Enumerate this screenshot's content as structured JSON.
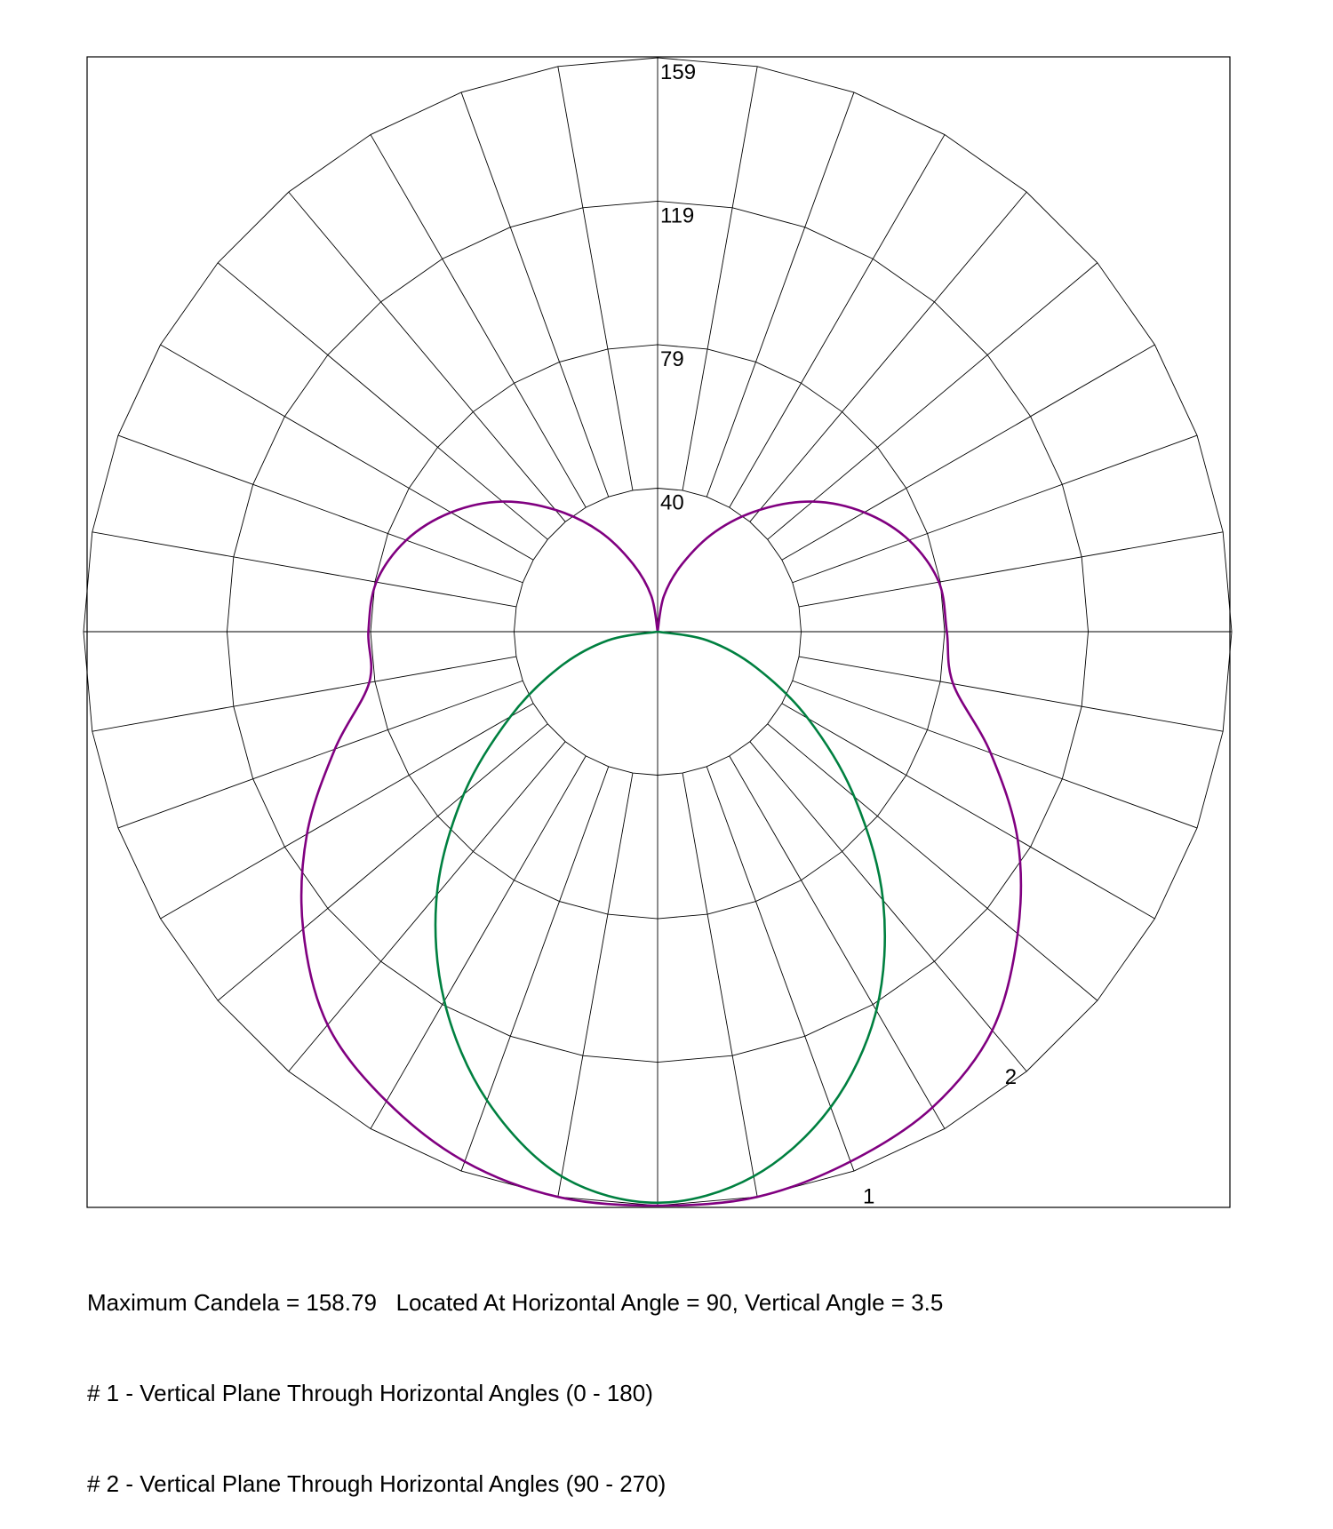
{
  "chart_data": {
    "type": "polar",
    "radial_max": 158.79,
    "radial_ticks": [
      {
        "value": 39.7,
        "label": "40"
      },
      {
        "value": 79.4,
        "label": "79"
      },
      {
        "value": 119.1,
        "label": "119"
      },
      {
        "value": 158.79,
        "label": "159"
      }
    ],
    "angular_grid_step_deg": 10,
    "angle_zero": "down",
    "grid": true,
    "series": [
      {
        "id": "1",
        "label": "1",
        "color": "#800080",
        "points": [
          [
            -180,
            0
          ],
          [
            -170,
            10
          ],
          [
            -160,
            20
          ],
          [
            -150,
            32
          ],
          [
            -140,
            44
          ],
          [
            -130,
            56
          ],
          [
            -120,
            66
          ],
          [
            -110,
            74
          ],
          [
            -100,
            79
          ],
          [
            -90,
            80
          ],
          [
            -80,
            81
          ],
          [
            -70,
            95
          ],
          [
            -60,
            112
          ],
          [
            -50,
            128
          ],
          [
            -40,
            142
          ],
          [
            -30,
            150
          ],
          [
            -20,
            156
          ],
          [
            -10,
            158.79
          ],
          [
            0,
            158.79
          ],
          [
            10,
            158.79
          ],
          [
            20,
            156
          ],
          [
            30,
            152
          ],
          [
            40,
            144
          ],
          [
            50,
            130
          ],
          [
            60,
            115
          ],
          [
            70,
            98
          ],
          [
            80,
            83
          ],
          [
            90,
            80
          ],
          [
            100,
            79
          ],
          [
            110,
            74
          ],
          [
            120,
            66
          ],
          [
            130,
            56
          ],
          [
            140,
            44
          ],
          [
            150,
            32
          ],
          [
            160,
            20
          ],
          [
            170,
            10
          ],
          [
            180,
            0
          ]
        ]
      },
      {
        "id": "2",
        "label": "2",
        "color": "#008040",
        "points": [
          [
            -90,
            0
          ],
          [
            -80,
            14
          ],
          [
            -70,
            29
          ],
          [
            -60,
            47
          ],
          [
            -50,
            70
          ],
          [
            -40,
            95
          ],
          [
            -30,
            118
          ],
          [
            -20,
            138
          ],
          [
            -10,
            153
          ],
          [
            0,
            158
          ],
          [
            10,
            153
          ],
          [
            20,
            140
          ],
          [
            30,
            121
          ],
          [
            40,
            97
          ],
          [
            50,
            71
          ],
          [
            60,
            48
          ],
          [
            70,
            29
          ],
          [
            80,
            14
          ],
          [
            90,
            0
          ]
        ]
      }
    ],
    "series_label_positions": [
      {
        "label": "1",
        "angle_deg": 20,
        "radius": 166
      },
      {
        "label": "2",
        "angle_deg": 38,
        "radius": 156
      }
    ]
  },
  "caption": {
    "line1": "Maximum Candela = 158.79   Located At Horizontal Angle = 90, Vertical Angle = 3.5",
    "line2": "# 1 - Vertical Plane Through Horizontal Angles (0 - 180)",
    "line3": "# 2 - Vertical Plane Through Horizontal Angles (90 - 270)"
  }
}
